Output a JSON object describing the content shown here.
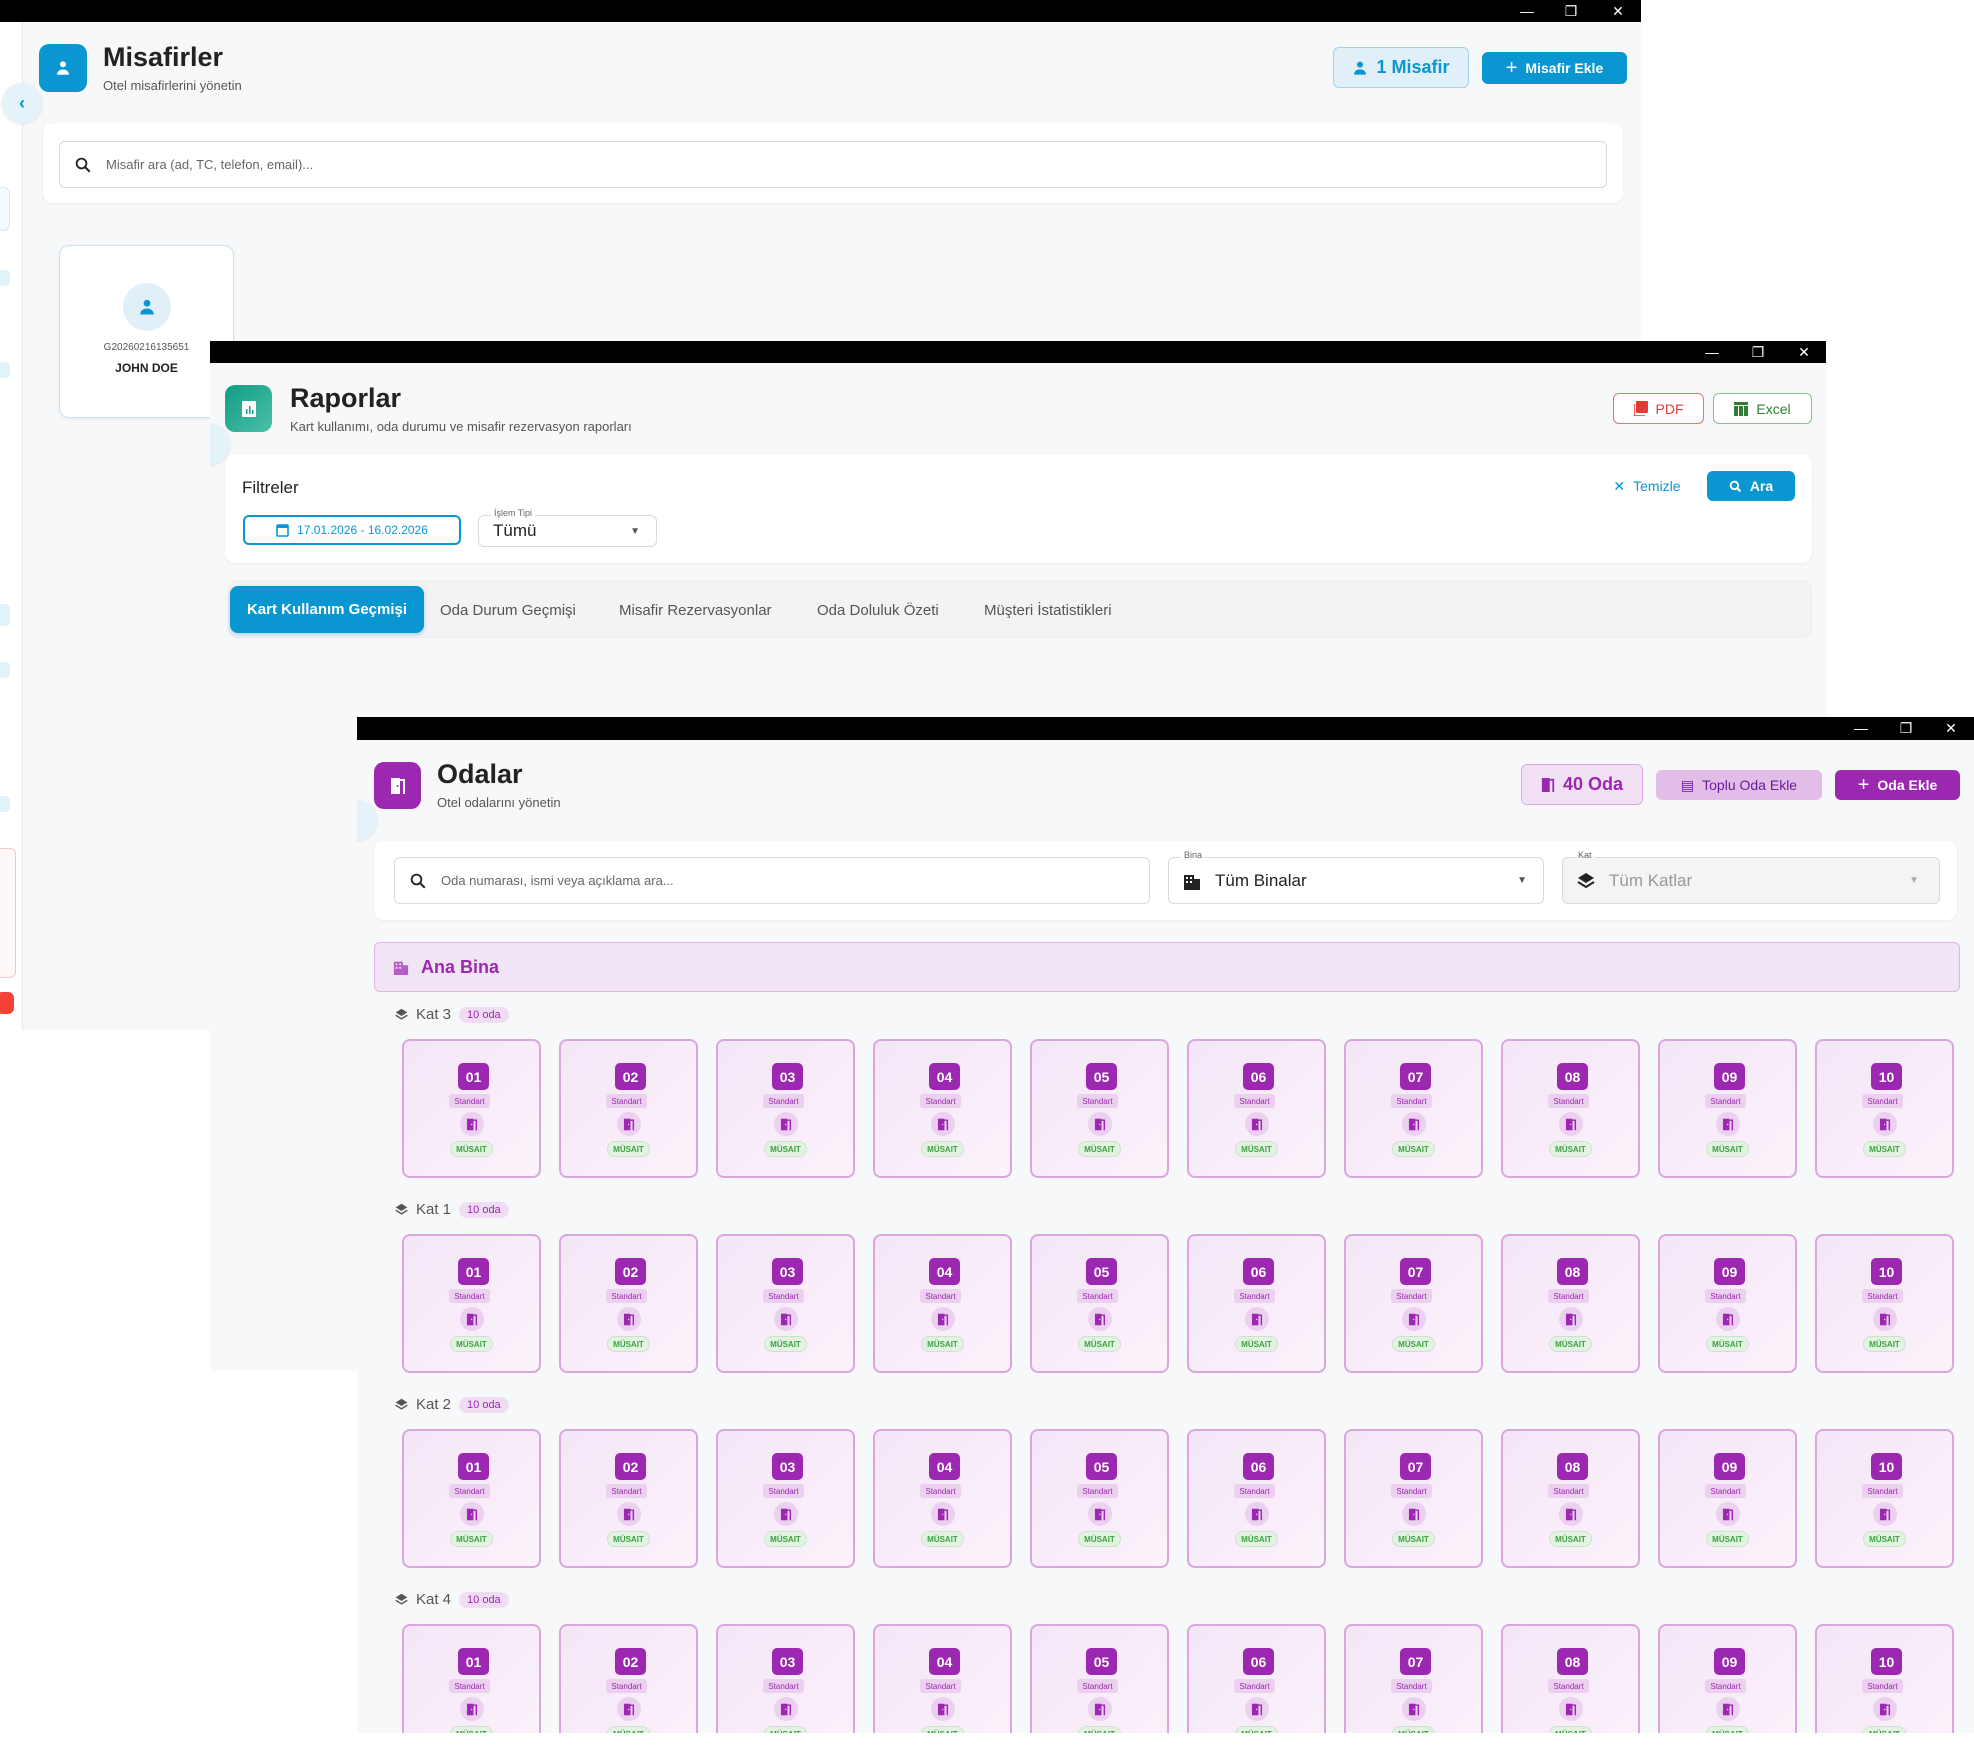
{
  "window_controls": {
    "minimize": "—",
    "restore": "❐",
    "close": "✕"
  },
  "misafirler": {
    "title": "Misafirler",
    "subtitle": "Otel misafirlerini yönetin",
    "count_label": "1 Misafir",
    "add_label": "Misafir Ekle",
    "search_placeholder": "Misafir ara (ad, TC, telefon, email)...",
    "guests": [
      {
        "id": "G20260216135651",
        "name": "JOHN DOE"
      }
    ],
    "accent": "#0a96d0"
  },
  "raporlar": {
    "title": "Raporlar",
    "subtitle": "Kart kullanımı, oda durumu ve misafir rezervasyon raporları",
    "pdf_label": "PDF",
    "excel_label": "Excel",
    "filters": {
      "title": "Filtreler",
      "date_range": "17.01.2026 - 16.02.2026",
      "type_label": "İşlem Tipi",
      "type_value": "Tümü",
      "clear_label": "Temizle",
      "search_label": "Ara"
    },
    "tabs": [
      {
        "label": "Kart Kullanım Geçmişi",
        "active": true
      },
      {
        "label": "Oda Durum Geçmişi"
      },
      {
        "label": "Misafir Rezervasyonlar"
      },
      {
        "label": "Oda Doluluk Özeti"
      },
      {
        "label": "Müşteri İstatistikleri"
      }
    ],
    "accent": "#12a08a"
  },
  "odalar": {
    "title": "Odalar",
    "subtitle": "Otel odalarını yönetin",
    "count_label": "40 Oda",
    "bulk_label": "Toplu Oda Ekle",
    "add_label": "Oda Ekle",
    "search_placeholder": "Oda numarası, ismi veya açıklama ara...",
    "building_label": "Bina",
    "building_value": "Tüm Binalar",
    "floor_label": "Kat",
    "floor_value": "Tüm Katlar",
    "building_name": "Ana Bina",
    "accent": "#9c27b0",
    "room_type": "Standart",
    "room_status": "MÜSAIT",
    "floors": [
      {
        "name": "Kat 3",
        "count": "10 oda",
        "rooms": [
          "01",
          "02",
          "03",
          "04",
          "05",
          "06",
          "07",
          "08",
          "09",
          "10"
        ]
      },
      {
        "name": "Kat 1",
        "count": "10 oda",
        "rooms": [
          "01",
          "02",
          "03",
          "04",
          "05",
          "06",
          "07",
          "08",
          "09",
          "10"
        ]
      },
      {
        "name": "Kat 2",
        "count": "10 oda",
        "rooms": [
          "01",
          "02",
          "03",
          "04",
          "05",
          "06",
          "07",
          "08",
          "09",
          "10"
        ]
      },
      {
        "name": "Kat 4",
        "count": "10 oda",
        "rooms": [
          "01",
          "02",
          "03",
          "04",
          "05",
          "06",
          "07",
          "08",
          "09",
          "10"
        ]
      }
    ]
  }
}
